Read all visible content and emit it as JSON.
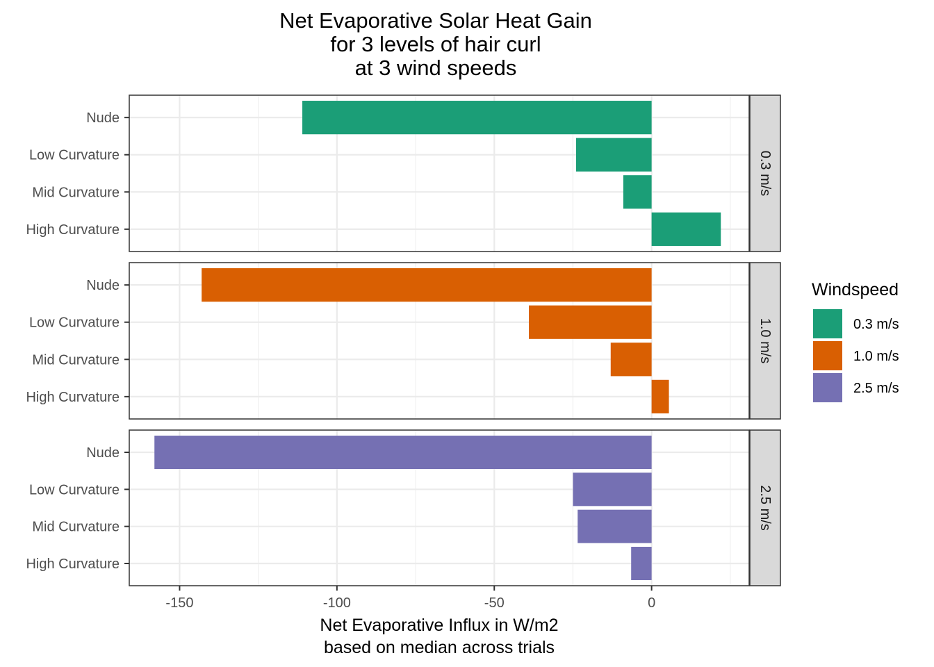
{
  "chart_data": {
    "type": "bar",
    "orientation": "horizontal",
    "title_lines": [
      "Net Evaporative Solar Heat Gain",
      "for 3 levels of hair curl",
      "at 3 wind speeds"
    ],
    "xlabel_lines": [
      "Net Evaporative Influx in W/m2",
      "based on median across trials"
    ],
    "ylabel": "",
    "categories": [
      "Nude",
      "Low Curvature",
      "Mid Curvature",
      "High Curvature"
    ],
    "xlim": [
      -166,
      31
    ],
    "x_ticks": [
      -150,
      -100,
      -50,
      0
    ],
    "x_tick_labels": [
      "-150",
      "-100",
      "-50",
      "0"
    ],
    "grid": true,
    "facet_by": "Windspeed",
    "facet_strip_position": "right",
    "series": [
      {
        "name": "0.3 m/s",
        "color": "#1b9e77",
        "values": [
          -111,
          -24,
          -9,
          22
        ]
      },
      {
        "name": "1.0 m/s",
        "color": "#d95f02",
        "values": [
          -143,
          -39,
          -13,
          5.5
        ]
      },
      {
        "name": "2.5 m/s",
        "color": "#7570b3",
        "values": [
          -158,
          -25,
          -23.5,
          -6.5
        ]
      }
    ],
    "legend": {
      "title": "Windspeed",
      "position": "right",
      "entries": [
        "0.3 m/s",
        "1.0 m/s",
        "2.5 m/s"
      ]
    }
  }
}
